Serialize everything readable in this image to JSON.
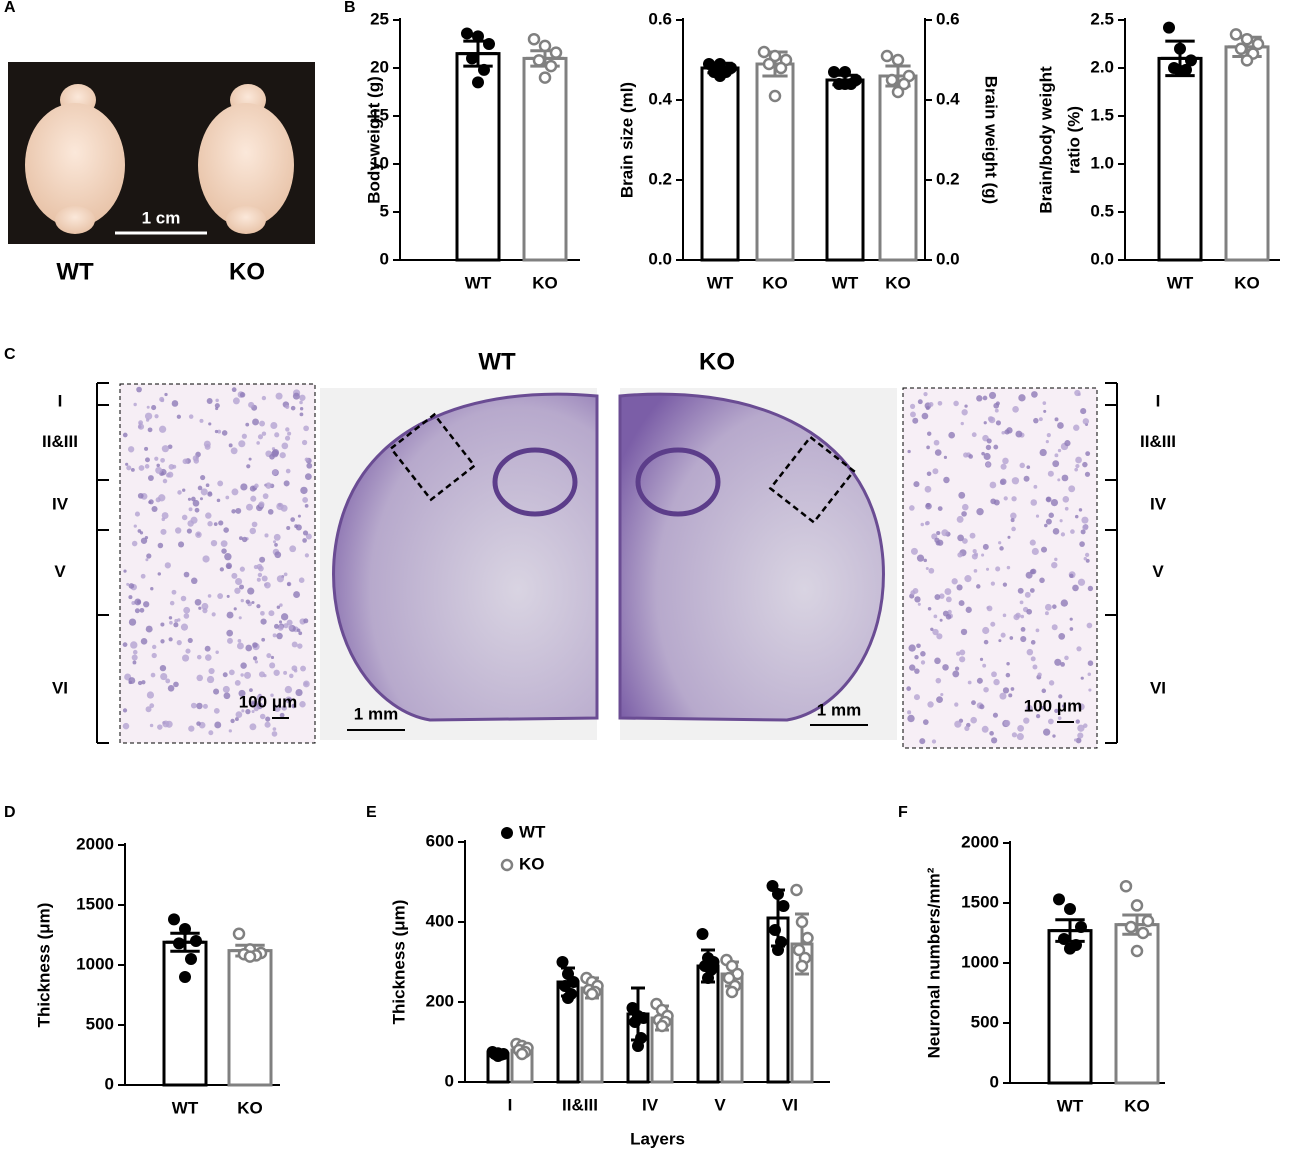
{
  "panel_labels": [
    "A",
    "B",
    "C",
    "D",
    "E",
    "F"
  ],
  "panels": {
    "A": {
      "wt": "WT",
      "ko": "KO",
      "scale": "1 cm"
    },
    "C": {
      "wt": "WT",
      "ko": "KO",
      "layers": [
        "I",
        "II&III",
        "IV",
        "V",
        "VI"
      ],
      "scale_micro": "100 μm",
      "scale_macro": "1 mm"
    }
  },
  "chart_data": [
    {
      "type": "bar",
      "ylabel": "Body weight (g)",
      "categories": [
        "WT",
        "KO"
      ],
      "colors": [
        "#000000",
        "#808080"
      ],
      "markers": [
        "filled",
        "open"
      ],
      "series": [
        {
          "values": [
            21.5,
            21.0
          ],
          "errors": [
            1.3,
            0.8
          ],
          "points": [
            [
              23.6,
              23.3,
              22.5,
              21.0,
              19.8,
              18.5
            ],
            [
              23.0,
              22.3,
              21.6,
              20.8,
              20.2,
              19.0
            ]
          ]
        }
      ],
      "ylim": [
        0,
        25
      ],
      "yticks": [
        0,
        5,
        10,
        15,
        20,
        25
      ]
    },
    {
      "type": "bar",
      "ylabel": "Brain size (ml)",
      "y2label": "Brain weight (g)",
      "categories": [
        "WT",
        "KO",
        "WT",
        "KO"
      ],
      "colors": [
        "#000000",
        "#808080",
        "#000000",
        "#808080"
      ],
      "markers": [
        "filled",
        "open",
        "filled",
        "open"
      ],
      "series": [
        {
          "values": [
            0.48,
            0.49,
            null,
            null
          ],
          "errors": [
            0.012,
            0.03,
            null,
            null
          ],
          "points": [
            [
              0.49,
              0.49,
              0.48,
              0.47,
              0.47,
              0.46
            ],
            [
              0.52,
              0.51,
              0.5,
              0.49,
              0.48,
              0.41
            ],
            null,
            null
          ]
        },
        {
          "axis": "y2",
          "values": [
            null,
            null,
            0.45,
            0.46
          ],
          "errors": [
            null,
            null,
            0.012,
            0.025
          ],
          "points": [
            null,
            null,
            [
              0.47,
              0.47,
              0.45,
              0.44,
              0.44,
              0.44
            ],
            [
              0.51,
              0.5,
              0.46,
              0.45,
              0.44,
              0.42
            ]
          ]
        }
      ],
      "ylim": [
        0,
        0.6
      ],
      "yticks": [
        {
          "value": 0,
          "label": "0.0"
        },
        0.2,
        0.4,
        0.6
      ],
      "y2lim": [
        0,
        0.6
      ],
      "y2ticks": [
        {
          "value": 0,
          "label": "0.0"
        },
        0.2,
        0.4,
        0.6
      ]
    },
    {
      "type": "bar",
      "ylabel": [
        "Brain/body weight",
        "ratio (%)"
      ],
      "categories": [
        "WT",
        "KO"
      ],
      "colors": [
        "#000000",
        "#808080"
      ],
      "markers": [
        "filled",
        "open"
      ],
      "series": [
        {
          "values": [
            2.1,
            2.22
          ],
          "errors": [
            0.18,
            0.1
          ],
          "points": [
            [
              2.42,
              2.2,
              2.08,
              2.0,
              1.98,
              1.97
            ],
            [
              2.35,
              2.3,
              2.25,
              2.2,
              2.15,
              2.08
            ]
          ]
        }
      ],
      "ylim": [
        0,
        2.5
      ],
      "yticks": [
        {
          "value": 0,
          "label": "0.0"
        },
        0.5,
        {
          "value": 1,
          "label": "1.0"
        },
        1.5,
        {
          "value": 2,
          "label": "2.0"
        },
        2.5
      ]
    },
    {
      "type": "bar",
      "ylabel": "Thickness (μm)",
      "categories": [
        "WT",
        "KO"
      ],
      "colors": [
        "#000000",
        "#808080"
      ],
      "markers": [
        "filled",
        "open"
      ],
      "series": [
        {
          "values": [
            1190,
            1120
          ],
          "errors": [
            75,
            45
          ],
          "points": [
            [
              1380,
              1300,
              1200,
              1180,
              1050,
              900
            ],
            [
              1260,
              1130,
              1100,
              1090,
              1080,
              1070
            ]
          ]
        }
      ],
      "ylim": [
        0,
        2000
      ],
      "yticks": [
        0,
        500,
        1000,
        1500,
        2000
      ]
    },
    {
      "type": "bar",
      "ylabel": "Thickness (μm)",
      "xlabel": "Layers",
      "categories": [
        "I",
        "II&III",
        "IV",
        "V",
        "VI"
      ],
      "legend": "upper left",
      "series": [
        {
          "name": "WT",
          "color": "#000000",
          "marker": "filled",
          "values": [
            70,
            250,
            170,
            290,
            410
          ],
          "errors": [
            8,
            35,
            65,
            40,
            70
          ],
          "points": [
            [
              75,
              72,
              70,
              70,
              68,
              65
            ],
            [
              300,
              270,
              250,
              240,
              220,
              210
            ],
            [
              185,
              165,
              160,
              150,
              110,
              90
            ],
            [
              370,
              310,
              300,
              290,
              280,
              260
            ],
            [
              490,
              470,
              440,
              380,
              350,
              330
            ]
          ]
        },
        {
          "name": "KO",
          "color": "#808080",
          "marker": "open",
          "values": [
            80,
            235,
            160,
            270,
            345
          ],
          "errors": [
            10,
            25,
            30,
            30,
            75
          ],
          "points": [
            [
              95,
              90,
              85,
              80,
              75,
              70
            ],
            [
              260,
              250,
              240,
              230,
              225,
              220
            ],
            [
              195,
              180,
              165,
              155,
              150,
              140
            ],
            [
              305,
              290,
              270,
              260,
              240,
              225
            ],
            [
              480,
              400,
              360,
              330,
              310,
              290
            ]
          ]
        }
      ],
      "ylim": [
        0,
        600
      ],
      "yticks": [
        0,
        200,
        400,
        600
      ]
    },
    {
      "type": "bar",
      "ylabel": "Neuronal numbers/mm²",
      "categories": [
        "WT",
        "KO"
      ],
      "colors": [
        "#000000",
        "#808080"
      ],
      "markers": [
        "filled",
        "open"
      ],
      "series": [
        {
          "values": [
            1270,
            1320
          ],
          "errors": [
            90,
            80
          ],
          "points": [
            [
              1530,
              1450,
              1300,
              1200,
              1150,
              1120
            ],
            [
              1640,
              1480,
              1350,
              1300,
              1250,
              1100
            ]
          ]
        }
      ],
      "ylim": [
        0,
        2000
      ],
      "yticks": [
        0,
        500,
        1000,
        1500,
        2000
      ]
    }
  ]
}
